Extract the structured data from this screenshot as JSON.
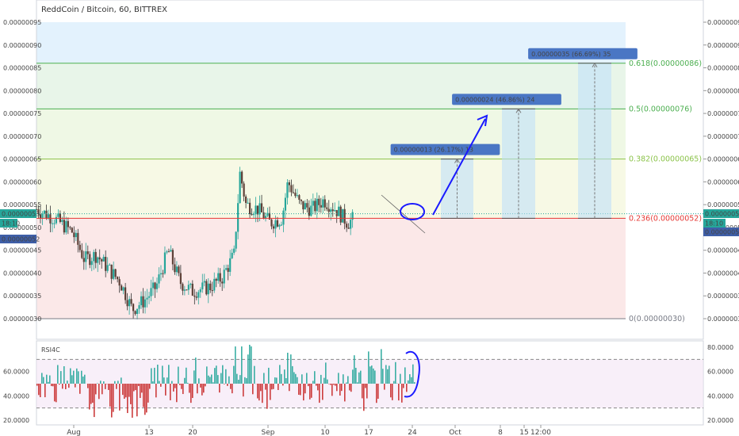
{
  "chart_data": [
    {
      "type": "candlestick",
      "title": "ReddCoin / Bitcoin, 60, BITTREX",
      "ylim": [
        3e-07,
        9e-07
      ],
      "y_ticks": [
        "0.00000095",
        "0.00000090",
        "0.00000085",
        "0.00000080",
        "0.00000075",
        "0.00000070",
        "0.00000065",
        "0.00000060",
        "0.00000055",
        "0.00000050",
        "0.00000045",
        "0.00000040",
        "0.00000035",
        "0.00000030"
      ],
      "y_tick_values": [
        9.5e-07,
        9e-07,
        8.5e-07,
        8e-07,
        7.5e-07,
        7e-07,
        6.5e-07,
        6e-07,
        5.5e-07,
        5e-07,
        4.5e-07,
        4e-07,
        3.5e-07,
        3e-07
      ],
      "x_ticks": [
        "Aug",
        "13",
        "20",
        "Sep",
        "10",
        "17",
        "24",
        "Oct",
        "8",
        "15",
        "12:00"
      ],
      "price_badges": {
        "last_left": "0.00000053",
        "time_left": "18:10",
        "second_left": "0.00000052",
        "last_right": "0.00000053",
        "time_right": "18:10",
        "second_right": "0.00000052"
      },
      "price_path": [
        {
          "day": 0,
          "close": 5.4e-07
        },
        {
          "day": 3,
          "close": 5.2e-07
        },
        {
          "day": 6,
          "close": 4.9e-07
        },
        {
          "day": 8,
          "close": 4.3e-07
        },
        {
          "day": 10,
          "close": 4.4e-07
        },
        {
          "day": 12,
          "close": 4.1e-07
        },
        {
          "day": 14,
          "close": 3.8e-07
        },
        {
          "day": 16,
          "close": 3.2e-07
        },
        {
          "day": 18,
          "close": 3.4e-07
        },
        {
          "day": 20,
          "close": 3.7e-07
        },
        {
          "day": 22,
          "close": 4.5e-07
        },
        {
          "day": 24,
          "close": 3.8e-07
        },
        {
          "day": 26,
          "close": 3.6e-07
        },
        {
          "day": 29,
          "close": 3.7e-07
        },
        {
          "day": 31,
          "close": 3.9e-07
        },
        {
          "day": 33,
          "close": 4.4e-07
        },
        {
          "day": 34,
          "close": 6.2e-07
        },
        {
          "day": 35,
          "close": 5.5e-07
        },
        {
          "day": 37,
          "close": 5.4e-07
        },
        {
          "day": 39,
          "close": 5.1e-07
        },
        {
          "day": 41,
          "close": 5.2e-07
        },
        {
          "day": 42,
          "close": 6e-07
        },
        {
          "day": 44,
          "close": 5.5e-07
        },
        {
          "day": 46,
          "close": 5.4e-07
        },
        {
          "day": 48,
          "close": 5.6e-07
        },
        {
          "day": 50,
          "close": 5.4e-07
        },
        {
          "day": 52,
          "close": 5.1e-07
        },
        {
          "day": 53,
          "close": 5.2e-07
        }
      ],
      "fib_levels": [
        {
          "label": "0.618(0.00000086)",
          "value": 8.6e-07,
          "color": "#4caf50"
        },
        {
          "label": "0.5(0.00000076)",
          "value": 7.6e-07,
          "color": "#4caf50"
        },
        {
          "label": "0.382(0.00000065)",
          "value": 6.5e-07,
          "color": "#8bc34a"
        },
        {
          "label": "0.236(0.00000052)",
          "value": 5.2e-07,
          "color": "#e53935"
        },
        {
          "label": "0(0.00000030)",
          "value": 3e-07,
          "color": "#787b86"
        }
      ],
      "fib_bands": [
        {
          "from": 8.6e-07,
          "to": 9.5e-07,
          "color": "#e3f2fd"
        },
        {
          "from": 7.6e-07,
          "to": 8.6e-07,
          "color": "#e8f5e9"
        },
        {
          "from": 6.5e-07,
          "to": 7.6e-07,
          "color": "#eff8e5"
        },
        {
          "from": 5.2e-07,
          "to": 6.5e-07,
          "color": "#f7f9e5"
        },
        {
          "from": 3e-07,
          "to": 5.2e-07,
          "color": "#fbe8e8"
        }
      ],
      "projections": [
        {
          "label": "0.00000013 (26.17%) 13",
          "from": 5.2e-07,
          "to": 6.5e-07
        },
        {
          "label": "0.00000024 (46.86%) 24",
          "from": 5.2e-07,
          "to": 7.6e-07
        },
        {
          "label": "0.00000035 (66.69%) 35",
          "from": 5.2e-07,
          "to": 8.6e-07
        }
      ]
    },
    {
      "type": "line",
      "title": "RSI4C",
      "ylim": [
        20,
        85
      ],
      "y_ticks": [
        "80.0000",
        "60.0000",
        "40.0000",
        "20.0000"
      ],
      "y_tick_values": [
        80,
        60,
        40,
        20
      ],
      "left_ticks": [
        "60.0000",
        "40.0000",
        "20.0000"
      ],
      "left_tick_values": [
        60,
        40,
        20
      ],
      "bands": [
        70,
        30
      ],
      "centerline": 50
    }
  ]
}
